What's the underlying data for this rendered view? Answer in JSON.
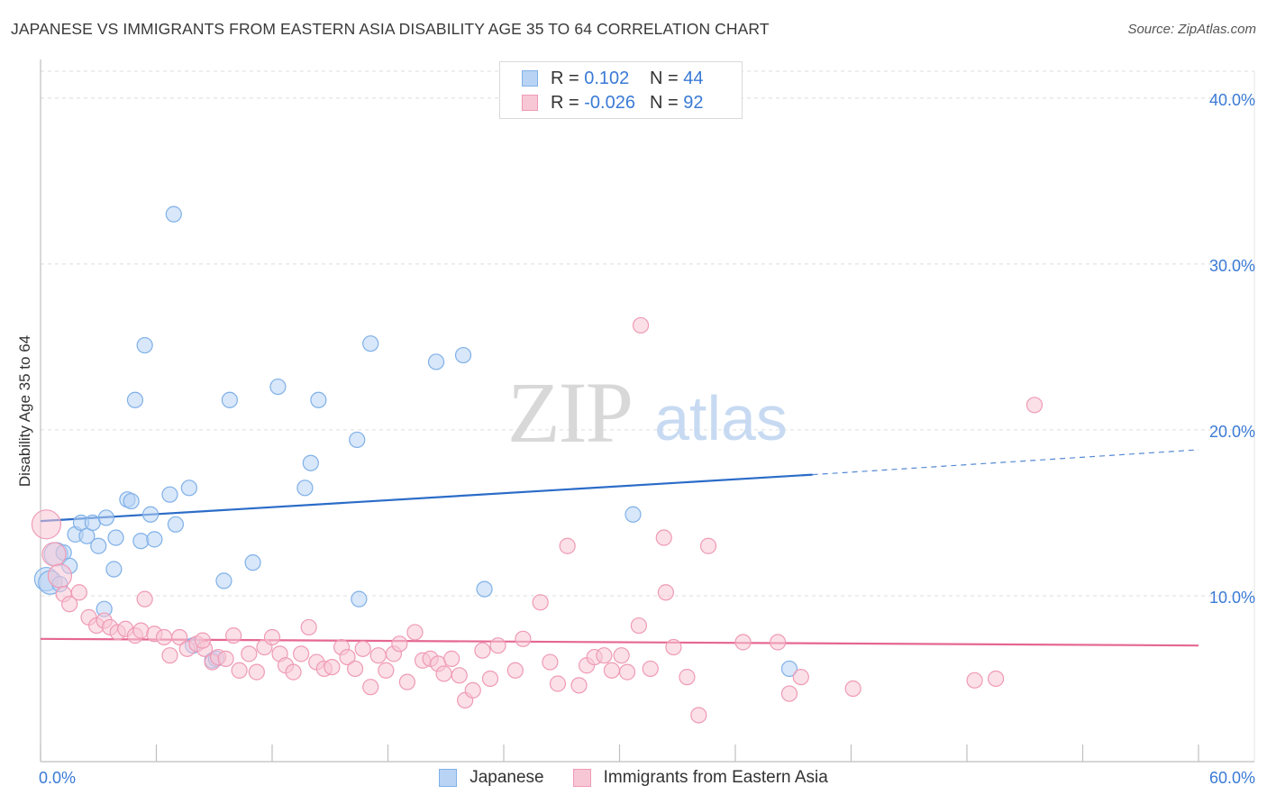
{
  "title": "JAPANESE VS IMMIGRANTS FROM EASTERN ASIA DISABILITY AGE 35 TO 64 CORRELATION CHART",
  "source": "Source: ZipAtlas.com",
  "watermark": {
    "zip": "ZIP",
    "atlas": "atlas"
  },
  "colors": {
    "blue": "#7fb0e8",
    "blue_fill": "#b8d3f4",
    "blue_line": "#2b6cc8",
    "pink": "#ef9ab5",
    "pink_fill": "#f7c7d6",
    "pink_line": "#e56792",
    "axis_text": "#3a7ad5",
    "grid": "#dedede"
  },
  "legend": {
    "rows": [
      {
        "r_label": "R = ",
        "r_value": "0.102",
        "n_label": "N = ",
        "n_value": "44",
        "color": "blue"
      },
      {
        "r_label": "R = ",
        "r_value": "-0.026",
        "n_label": "N = ",
        "n_value": "92",
        "color": "pink"
      }
    ]
  },
  "bottom_legend": [
    {
      "label": "Japanese",
      "color": "blue"
    },
    {
      "label": "Immigrants from Eastern Asia",
      "color": "pink"
    }
  ],
  "chart_data": {
    "type": "scatter",
    "title": "JAPANESE VS IMMIGRANTS FROM EASTERN ASIA DISABILITY AGE 35 TO 64 CORRELATION CHART",
    "xlabel": "",
    "ylabel": "Disability Age 35 to 64",
    "xlim": [
      0,
      60
    ],
    "ylim": [
      0,
      42
    ],
    "x_tick_labels": [
      "0.0%",
      "60.0%"
    ],
    "y_ticks": [
      10,
      20,
      30,
      40
    ],
    "y_tick_labels": [
      "10.0%",
      "20.0%",
      "30.0%",
      "40.0%"
    ],
    "grid": true,
    "series": [
      {
        "name": "Japanese",
        "color": "blue",
        "trend": {
          "x0": 0,
          "y0": 14.5,
          "x1": 40,
          "y1": 17.3,
          "dash_to_x": 60,
          "dash_to_y": 18.8
        },
        "points": [
          [
            0.3,
            11.0
          ],
          [
            0.5,
            10.8
          ],
          [
            0.8,
            12.5
          ],
          [
            1.0,
            10.7
          ],
          [
            1.2,
            12.6
          ],
          [
            1.5,
            11.8
          ],
          [
            1.8,
            13.7
          ],
          [
            2.1,
            14.4
          ],
          [
            2.4,
            13.6
          ],
          [
            2.7,
            14.4
          ],
          [
            3.0,
            13.0
          ],
          [
            3.4,
            14.7
          ],
          [
            3.9,
            13.5
          ],
          [
            3.8,
            11.6
          ],
          [
            4.5,
            15.8
          ],
          [
            4.7,
            15.7
          ],
          [
            5.2,
            13.3
          ],
          [
            5.7,
            14.9
          ],
          [
            5.9,
            13.4
          ],
          [
            6.7,
            16.1
          ],
          [
            7.0,
            14.3
          ],
          [
            7.7,
            16.5
          ],
          [
            7.9,
            7.0
          ],
          [
            8.9,
            6.1
          ],
          [
            9.1,
            6.2
          ],
          [
            9.5,
            10.9
          ],
          [
            9.8,
            21.8
          ],
          [
            11.0,
            12.0
          ],
          [
            3.3,
            9.2
          ],
          [
            4.9,
            21.8
          ],
          [
            5.4,
            25.1
          ],
          [
            6.9,
            33.0
          ],
          [
            12.3,
            22.6
          ],
          [
            13.7,
            16.5
          ],
          [
            14.0,
            18.0
          ],
          [
            14.4,
            21.8
          ],
          [
            16.4,
            19.4
          ],
          [
            16.5,
            9.8
          ],
          [
            17.1,
            25.2
          ],
          [
            20.5,
            24.1
          ],
          [
            21.9,
            24.5
          ],
          [
            23.0,
            10.4
          ],
          [
            30.7,
            14.9
          ],
          [
            38.8,
            5.6
          ]
        ]
      },
      {
        "name": "Immigrants from Eastern Asia",
        "color": "pink",
        "trend": {
          "x0": 0,
          "y0": 7.4,
          "x1": 60,
          "y1": 7.0
        },
        "points": [
          [
            0.3,
            14.3
          ],
          [
            0.7,
            12.5
          ],
          [
            1.0,
            11.2
          ],
          [
            1.2,
            10.1
          ],
          [
            1.5,
            9.5
          ],
          [
            2.0,
            10.2
          ],
          [
            2.5,
            8.7
          ],
          [
            2.9,
            8.2
          ],
          [
            3.3,
            8.5
          ],
          [
            3.6,
            8.1
          ],
          [
            4.0,
            7.8
          ],
          [
            4.4,
            8.0
          ],
          [
            4.9,
            7.6
          ],
          [
            5.2,
            7.9
          ],
          [
            5.4,
            9.8
          ],
          [
            5.9,
            7.7
          ],
          [
            6.4,
            7.5
          ],
          [
            6.7,
            6.4
          ],
          [
            7.2,
            7.5
          ],
          [
            7.6,
            6.8
          ],
          [
            8.1,
            7.1
          ],
          [
            8.5,
            6.8
          ],
          [
            8.9,
            6.0
          ],
          [
            9.2,
            6.3
          ],
          [
            9.6,
            6.2
          ],
          [
            10.0,
            7.6
          ],
          [
            10.3,
            5.5
          ],
          [
            10.8,
            6.5
          ],
          [
            11.2,
            5.4
          ],
          [
            11.6,
            6.9
          ],
          [
            12.0,
            7.5
          ],
          [
            12.4,
            6.5
          ],
          [
            12.7,
            5.8
          ],
          [
            13.1,
            5.4
          ],
          [
            13.5,
            6.5
          ],
          [
            13.9,
            8.1
          ],
          [
            14.3,
            6.0
          ],
          [
            14.7,
            5.6
          ],
          [
            15.1,
            5.7
          ],
          [
            15.6,
            6.9
          ],
          [
            15.9,
            6.3
          ],
          [
            16.3,
            5.6
          ],
          [
            16.7,
            6.8
          ],
          [
            17.1,
            4.5
          ],
          [
            17.5,
            6.4
          ],
          [
            17.9,
            5.5
          ],
          [
            18.3,
            6.5
          ],
          [
            18.6,
            7.1
          ],
          [
            19.0,
            4.8
          ],
          [
            19.4,
            7.8
          ],
          [
            19.8,
            6.1
          ],
          [
            20.2,
            6.2
          ],
          [
            20.6,
            5.9
          ],
          [
            20.9,
            5.3
          ],
          [
            21.3,
            6.2
          ],
          [
            21.7,
            5.2
          ],
          [
            22.0,
            3.7
          ],
          [
            22.4,
            4.3
          ],
          [
            22.9,
            6.7
          ],
          [
            23.3,
            5.0
          ],
          [
            23.7,
            7.0
          ],
          [
            24.6,
            5.5
          ],
          [
            25.0,
            7.4
          ],
          [
            25.9,
            9.6
          ],
          [
            26.4,
            6.0
          ],
          [
            26.8,
            4.7
          ],
          [
            27.3,
            13.0
          ],
          [
            27.9,
            4.6
          ],
          [
            28.3,
            5.8
          ],
          [
            28.7,
            6.3
          ],
          [
            29.2,
            6.4
          ],
          [
            29.6,
            5.5
          ],
          [
            30.1,
            6.4
          ],
          [
            30.4,
            5.4
          ],
          [
            31.0,
            8.2
          ],
          [
            31.6,
            5.6
          ],
          [
            32.3,
            13.5
          ],
          [
            32.4,
            10.2
          ],
          [
            32.8,
            6.9
          ],
          [
            33.5,
            5.1
          ],
          [
            34.1,
            2.8
          ],
          [
            34.6,
            13.0
          ],
          [
            36.4,
            7.2
          ],
          [
            38.2,
            7.2
          ],
          [
            38.8,
            4.1
          ],
          [
            39.4,
            5.1
          ],
          [
            31.1,
            26.3
          ],
          [
            42.1,
            4.4
          ],
          [
            48.4,
            4.9
          ],
          [
            49.5,
            5.0
          ],
          [
            51.5,
            21.5
          ],
          [
            8.4,
            7.3
          ]
        ]
      }
    ]
  }
}
